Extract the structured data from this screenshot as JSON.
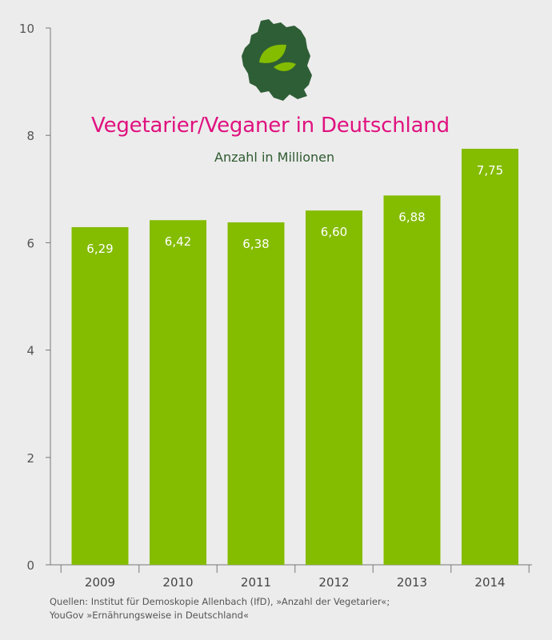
{
  "chart_data": {
    "type": "bar",
    "title": "Vegetarier/Veganer in Deutschland",
    "subtitle": "Anzahl in Millionen",
    "categories": [
      "2009",
      "2010",
      "2011",
      "2012",
      "2013",
      "2014"
    ],
    "values": [
      6.29,
      6.42,
      6.38,
      6.6,
      6.88,
      7.75
    ],
    "value_labels": [
      "6,29",
      "6,42",
      "6,38",
      "6,60",
      "6,88",
      "7,75"
    ],
    "ylim": [
      0,
      10
    ],
    "yticks": [
      0,
      2,
      4,
      6,
      8,
      10
    ],
    "xlabel": "",
    "ylabel": "",
    "grid": false,
    "bar_color": "#84bc00"
  },
  "logo": {
    "icon": "germany-leaf-icon",
    "map_color": "#2e5e36",
    "leaf_color": "#84bc00"
  },
  "source": {
    "line1": "Quellen: Institut für Demoskopie Allenbach (IfD), »Anzahl der Vegetarier«;",
    "line2": "YouGov »Ernährungsweise in Deutschland«"
  },
  "colors": {
    "background": "#ececec",
    "title": "#e0117f",
    "subtitle": "#2e5a30",
    "axis": "#777777"
  }
}
